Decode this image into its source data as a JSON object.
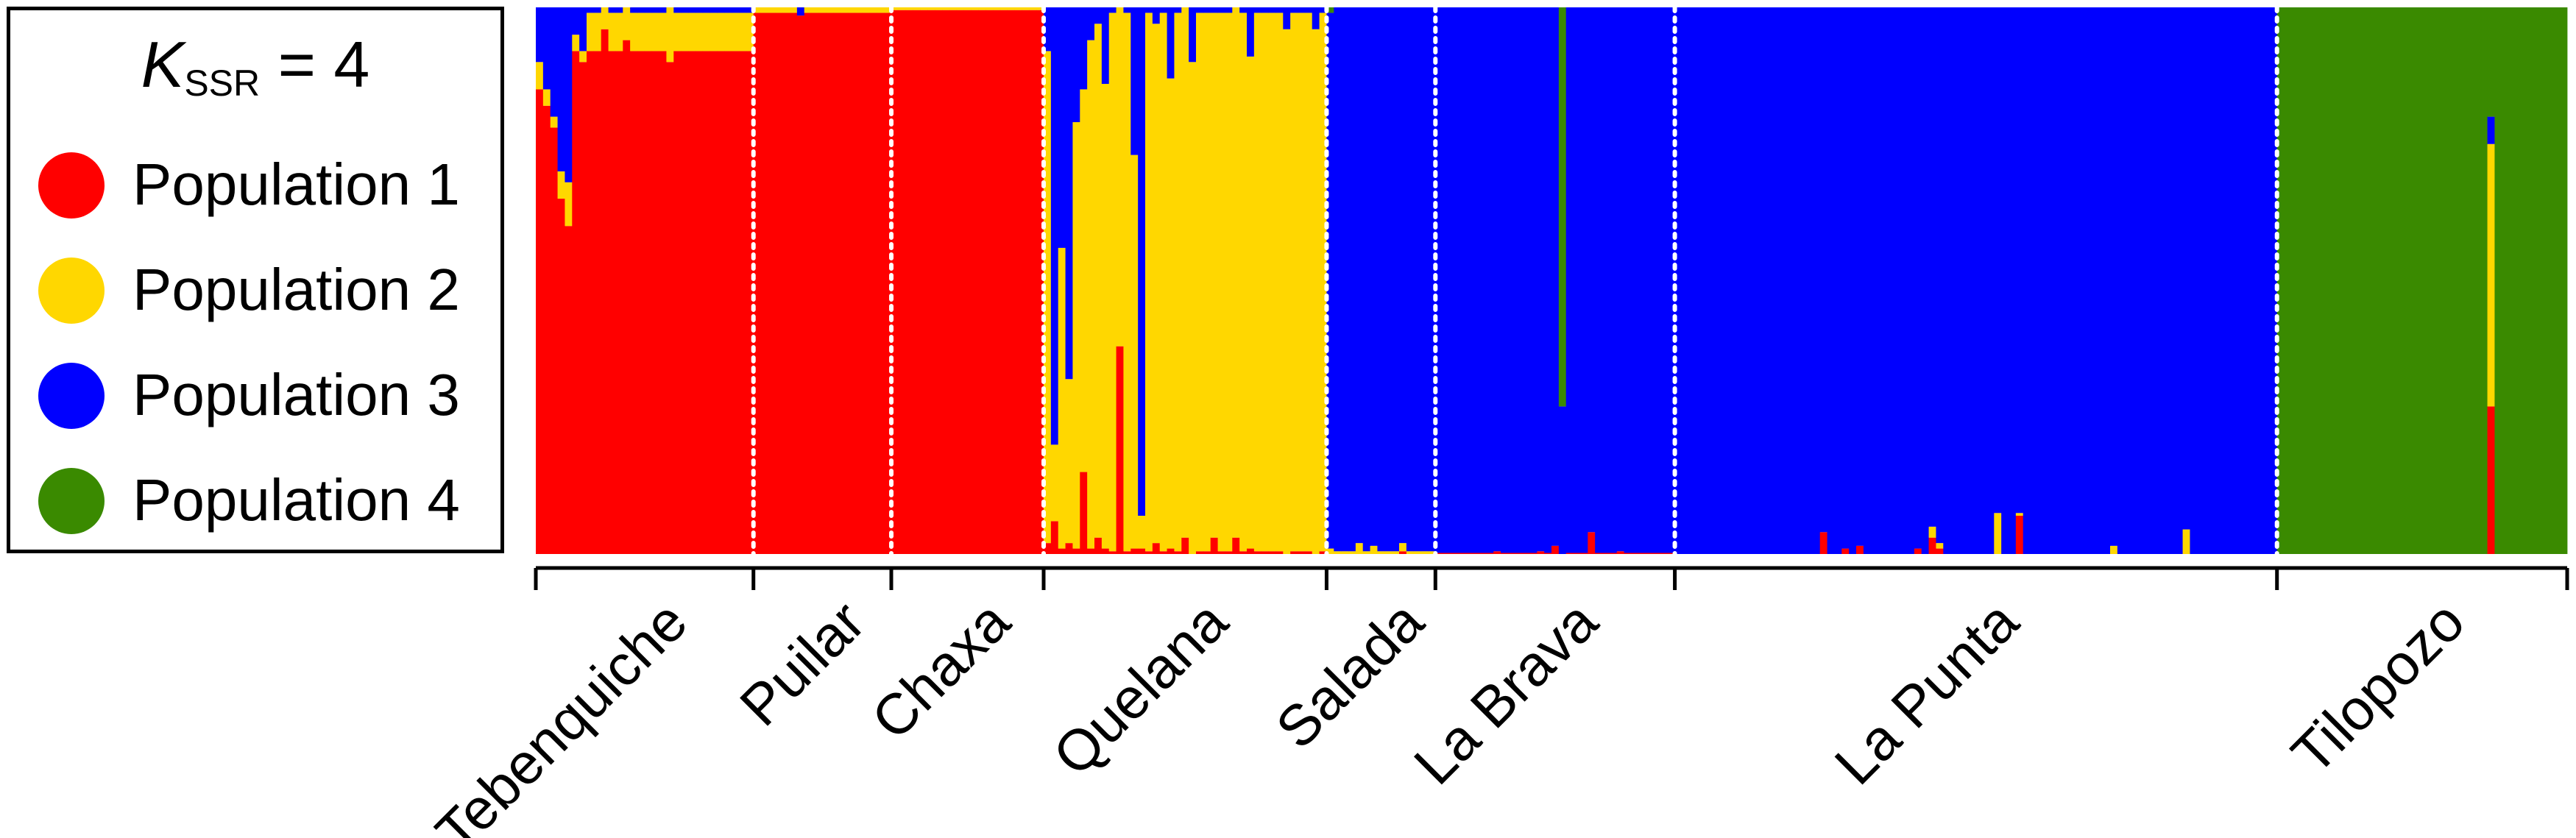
{
  "legend": {
    "k_letter": "K",
    "k_subscript": "SSR",
    "k_value": "= 4",
    "items": [
      {
        "label": "Population 1",
        "color": "#ff0000"
      },
      {
        "label": "Population 2",
        "color": "#ffd700"
      },
      {
        "label": "Population 3",
        "color": "#0000ff"
      },
      {
        "label": "Population 4",
        "color": "#3a8a00"
      }
    ]
  },
  "chart_data": {
    "type": "bar",
    "subtype": "stacked-100-percent-admixture",
    "ylim": [
      0,
      1
    ],
    "cluster_order": [
      "Population 1",
      "Population 2",
      "Population 3",
      "Population 4"
    ],
    "colors": {
      "Population 1": "#ff0000",
      "Population 2": "#ffd700",
      "Population 3": "#0000ff",
      "Population 4": "#3a8a00"
    },
    "groups": [
      {
        "name": "Tebenquiche",
        "n": 30,
        "base": [
          0.92,
          0.07,
          0.01,
          0
        ],
        "special": [
          {
            "i": 0,
            "q": [
              0.85,
              0.05,
              0.1,
              0
            ]
          },
          {
            "i": 1,
            "q": [
              0.82,
              0.03,
              0.15,
              0
            ]
          },
          {
            "i": 2,
            "q": [
              0.78,
              0.02,
              0.2,
              0
            ]
          },
          {
            "i": 3,
            "q": [
              0.65,
              0.05,
              0.3,
              0
            ]
          },
          {
            "i": 4,
            "q": [
              0.6,
              0.08,
              0.32,
              0
            ]
          },
          {
            "i": 5,
            "q": [
              0.92,
              0.03,
              0.05,
              0
            ]
          },
          {
            "i": 6,
            "q": [
              0.9,
              0.02,
              0.08,
              0
            ]
          },
          {
            "i": 9,
            "q": [
              0.96,
              0.04,
              0,
              0
            ]
          },
          {
            "i": 12,
            "q": [
              0.94,
              0.06,
              0,
              0
            ]
          },
          {
            "i": 18,
            "q": [
              0.9,
              0.1,
              0,
              0
            ]
          }
        ]
      },
      {
        "name": "Puilar",
        "n": 19,
        "base": [
          0.99,
          0.01,
          0,
          0
        ],
        "special": [
          {
            "i": 6,
            "q": [
              0.985,
              0,
              0.015,
              0
            ]
          }
        ]
      },
      {
        "name": "Chaxa",
        "n": 21,
        "base": [
          0.995,
          0.005,
          0,
          0
        ]
      },
      {
        "name": "Quelana",
        "n": 39,
        "base": [
          0.005,
          0.985,
          0.01,
          0
        ],
        "special": [
          {
            "i": 0,
            "q": [
              0.02,
              0.9,
              0.08,
              0
            ]
          },
          {
            "i": 1,
            "q": [
              0.06,
              0.14,
              0.8,
              0
            ]
          },
          {
            "i": 2,
            "q": [
              0.01,
              0.55,
              0.44,
              0
            ]
          },
          {
            "i": 3,
            "q": [
              0.02,
              0.3,
              0.68,
              0
            ]
          },
          {
            "i": 4,
            "q": [
              0.01,
              0.78,
              0.21,
              0
            ]
          },
          {
            "i": 5,
            "q": [
              0.15,
              0.7,
              0.15,
              0
            ]
          },
          {
            "i": 6,
            "q": [
              0.01,
              0.93,
              0.06,
              0
            ]
          },
          {
            "i": 7,
            "q": [
              0.03,
              0.94,
              0.03,
              0
            ]
          },
          {
            "i": 8,
            "q": [
              0.01,
              0.85,
              0.14,
              0
            ]
          },
          {
            "i": 10,
            "q": [
              0.38,
              0.62,
              0,
              0
            ]
          },
          {
            "i": 12,
            "q": [
              0.01,
              0.72,
              0.27,
              0
            ]
          },
          {
            "i": 13,
            "q": [
              0.01,
              0.06,
              0.93,
              0
            ]
          },
          {
            "i": 15,
            "q": [
              0.02,
              0.95,
              0.03,
              0
            ]
          },
          {
            "i": 17,
            "q": [
              0.01,
              0.86,
              0.13,
              0
            ]
          },
          {
            "i": 19,
            "q": [
              0.03,
              0.97,
              0,
              0
            ]
          },
          {
            "i": 20,
            "q": [
              0,
              0.9,
              0.1,
              0
            ]
          },
          {
            "i": 23,
            "q": [
              0.03,
              0.96,
              0.01,
              0
            ]
          },
          {
            "i": 26,
            "q": [
              0.03,
              0.97,
              0,
              0
            ]
          },
          {
            "i": 28,
            "q": [
              0.01,
              0.9,
              0.09,
              0
            ]
          },
          {
            "i": 33,
            "q": [
              0,
              0.96,
              0.04,
              0
            ]
          },
          {
            "i": 37,
            "q": [
              0,
              0.96,
              0.04,
              0
            ]
          }
        ]
      },
      {
        "name": "Salada",
        "n": 15,
        "base": [
          0,
          0.005,
          0.995,
          0
        ],
        "special": [
          {
            "i": 0,
            "q": [
              0,
              0.01,
              0.98,
              0.01
            ]
          },
          {
            "i": 4,
            "q": [
              0,
              0.02,
              0.98,
              0
            ]
          },
          {
            "i": 6,
            "q": [
              0,
              0.015,
              0.985,
              0
            ]
          },
          {
            "i": 10,
            "q": [
              0.005,
              0.015,
              0.98,
              0
            ]
          }
        ]
      },
      {
        "name": "La Brava",
        "n": 33,
        "base": [
          0.002,
          0,
          0.998,
          0
        ],
        "special": [
          {
            "i": 8,
            "q": [
              0.005,
              0,
              0.995,
              0
            ]
          },
          {
            "i": 14,
            "q": [
              0.005,
              0,
              0.995,
              0
            ]
          },
          {
            "i": 16,
            "q": [
              0.015,
              0,
              0.985,
              0
            ]
          },
          {
            "i": 17,
            "q": [
              0,
              0,
              0.27,
              0.73
            ]
          },
          {
            "i": 21,
            "q": [
              0.04,
              0,
              0.96,
              0
            ]
          },
          {
            "i": 25,
            "q": [
              0.005,
              0,
              0.995,
              0
            ]
          }
        ]
      },
      {
        "name": "La Punta",
        "n": 83,
        "base": [
          0,
          0,
          1,
          0
        ],
        "special": [
          {
            "i": 20,
            "q": [
              0.04,
              0,
              0.96,
              0
            ]
          },
          {
            "i": 23,
            "q": [
              0.01,
              0,
              0.99,
              0
            ]
          },
          {
            "i": 25,
            "q": [
              0.015,
              0,
              0.985,
              0
            ]
          },
          {
            "i": 33,
            "q": [
              0.01,
              0,
              0.99,
              0
            ]
          },
          {
            "i": 35,
            "q": [
              0.03,
              0.02,
              0.95,
              0
            ]
          },
          {
            "i": 36,
            "q": [
              0.01,
              0.01,
              0.98,
              0
            ]
          },
          {
            "i": 44,
            "q": [
              0,
              0.075,
              0.925,
              0
            ]
          },
          {
            "i": 47,
            "q": [
              0.07,
              0.005,
              0.925,
              0
            ]
          },
          {
            "i": 60,
            "q": [
              0,
              0.015,
              0.985,
              0
            ]
          },
          {
            "i": 70,
            "q": [
              0,
              0.045,
              0.955,
              0
            ]
          }
        ]
      },
      {
        "name": "Tilopozo",
        "n": 40,
        "base": [
          0,
          0,
          0,
          1
        ],
        "special": [
          {
            "i": 29,
            "q": [
              0.27,
              0.48,
              0.05,
              0.2
            ]
          }
        ]
      }
    ]
  }
}
